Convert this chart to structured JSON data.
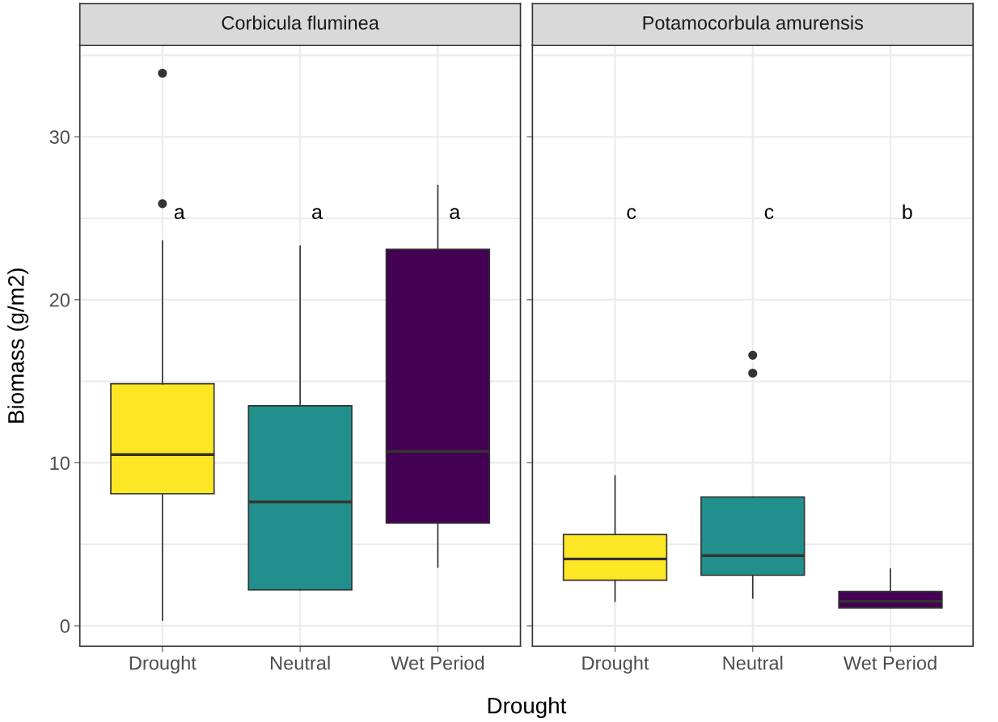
{
  "chart_data": [
    {
      "type": "box",
      "title": "Corbicula fluminea",
      "ylabel": "Biomass (g/m2)",
      "xlabel": "Drought",
      "categories": [
        "Drought",
        "Neutral",
        "Wet Period"
      ],
      "colors": [
        "#fde725",
        "#21908c",
        "#440154"
      ],
      "boxes": [
        {
          "low": 0.35,
          "q1": 8.1,
          "median": 10.5,
          "q3": 14.85,
          "high": 23.6,
          "outliers": [
            25.9,
            33.9
          ]
        },
        {
          "low": 2.2,
          "q1": 2.2,
          "median": 7.6,
          "q3": 13.5,
          "high": 23.3
        },
        {
          "low": 3.6,
          "q1": 6.3,
          "median": 10.7,
          "q3": 23.1,
          "high": 27.0
        }
      ],
      "annotations": [
        "a",
        "a",
        "a"
      ],
      "ylim": [
        -1.25,
        35.6
      ],
      "yticks": [
        0,
        {
          "value": 5,
          "label": null
        },
        10,
        {
          "value": 15,
          "label": null
        },
        20,
        {
          "value": 25,
          "label": null
        },
        30,
        {
          "value": 35,
          "label": null
        }
      ],
      "grid": true
    },
    {
      "type": "box",
      "title": "Potamocorbula amurensis",
      "categories": [
        "Drought",
        "Neutral",
        "Wet Period"
      ],
      "colors": [
        "#fde725",
        "#21908c",
        "#440154"
      ],
      "boxes": [
        {
          "low": 1.5,
          "q1": 2.8,
          "median": 4.1,
          "q3": 5.6,
          "high": 9.2
        },
        {
          "low": 1.7,
          "q1": 3.1,
          "median": 4.3,
          "q3": 7.9,
          "high": 7.9,
          "outliers": [
            15.5,
            16.6
          ]
        },
        {
          "low": 1.1,
          "q1": 1.1,
          "median": 1.5,
          "q3": 2.1,
          "high": 3.5
        }
      ],
      "annotations": [
        "c",
        "c",
        "b"
      ],
      "ylim": [
        -1.25,
        35.6
      ],
      "yticks": [
        0,
        {
          "value": 5,
          "label": null
        },
        10,
        {
          "value": 15,
          "label": null
        },
        20,
        {
          "value": 25,
          "label": null
        },
        30,
        {
          "value": 35,
          "label": null
        }
      ],
      "grid": true,
      "tick_labels": "x"
    }
  ]
}
